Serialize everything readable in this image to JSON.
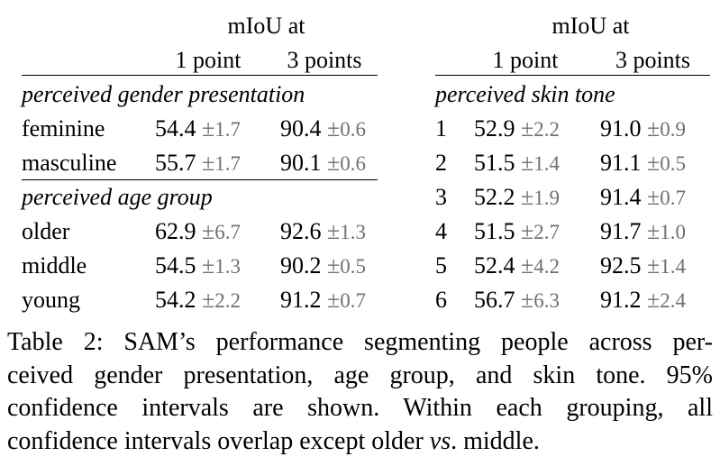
{
  "left_table": {
    "header_top": "mIoU at",
    "col1": "1 point",
    "col2": "3 points",
    "groups": [
      {
        "title": "perceived gender presentation",
        "rows": [
          {
            "label": "feminine",
            "v1": "54.4",
            "ci1": "1.7",
            "v3": "90.4",
            "ci3": "0.6"
          },
          {
            "label": "masculine",
            "v1": "55.7",
            "ci1": "1.7",
            "v3": "90.1",
            "ci3": "0.6"
          }
        ]
      },
      {
        "title": "perceived age group",
        "rows": [
          {
            "label": "older",
            "v1": "62.9",
            "ci1": "6.7",
            "v3": "92.6",
            "ci3": "1.3"
          },
          {
            "label": "middle",
            "v1": "54.5",
            "ci1": "1.3",
            "v3": "90.2",
            "ci3": "0.5"
          },
          {
            "label": "young",
            "v1": "54.2",
            "ci1": "2.2",
            "v3": "91.2",
            "ci3": "0.7"
          }
        ]
      }
    ]
  },
  "right_table": {
    "header_top": "mIoU at",
    "col1": "1 point",
    "col2": "3 points",
    "groups": [
      {
        "title": "perceived skin tone",
        "rows": [
          {
            "label": "1",
            "v1": "52.9",
            "ci1": "2.2",
            "v3": "91.0",
            "ci3": "0.9"
          },
          {
            "label": "2",
            "v1": "51.5",
            "ci1": "1.4",
            "v3": "91.1",
            "ci3": "0.5"
          },
          {
            "label": "3",
            "v1": "52.2",
            "ci1": "1.9",
            "v3": "91.4",
            "ci3": "0.7"
          },
          {
            "label": "4",
            "v1": "51.5",
            "ci1": "2.7",
            "v3": "91.7",
            "ci3": "1.0"
          },
          {
            "label": "5",
            "v1": "52.4",
            "ci1": "4.2",
            "v3": "92.5",
            "ci3": "1.4"
          },
          {
            "label": "6",
            "v1": "56.7",
            "ci1": "6.3",
            "v3": "91.2",
            "ci3": "2.4"
          }
        ]
      }
    ]
  },
  "plus_minus": "±",
  "caption": {
    "line1": "Table 2: SAM’s performance segmenting people across per-",
    "line2": "ceived gender presentation, age group, and skin tone. 95%",
    "line3": "confidence intervals are shown. Within each grouping, all",
    "line4_a": "confidence intervals overlap except older ",
    "line4_vs": "vs",
    "line4_b": ". middle."
  },
  "colors": {
    "text": "#000000",
    "ci_text": "#707070",
    "rule": "#000000"
  }
}
